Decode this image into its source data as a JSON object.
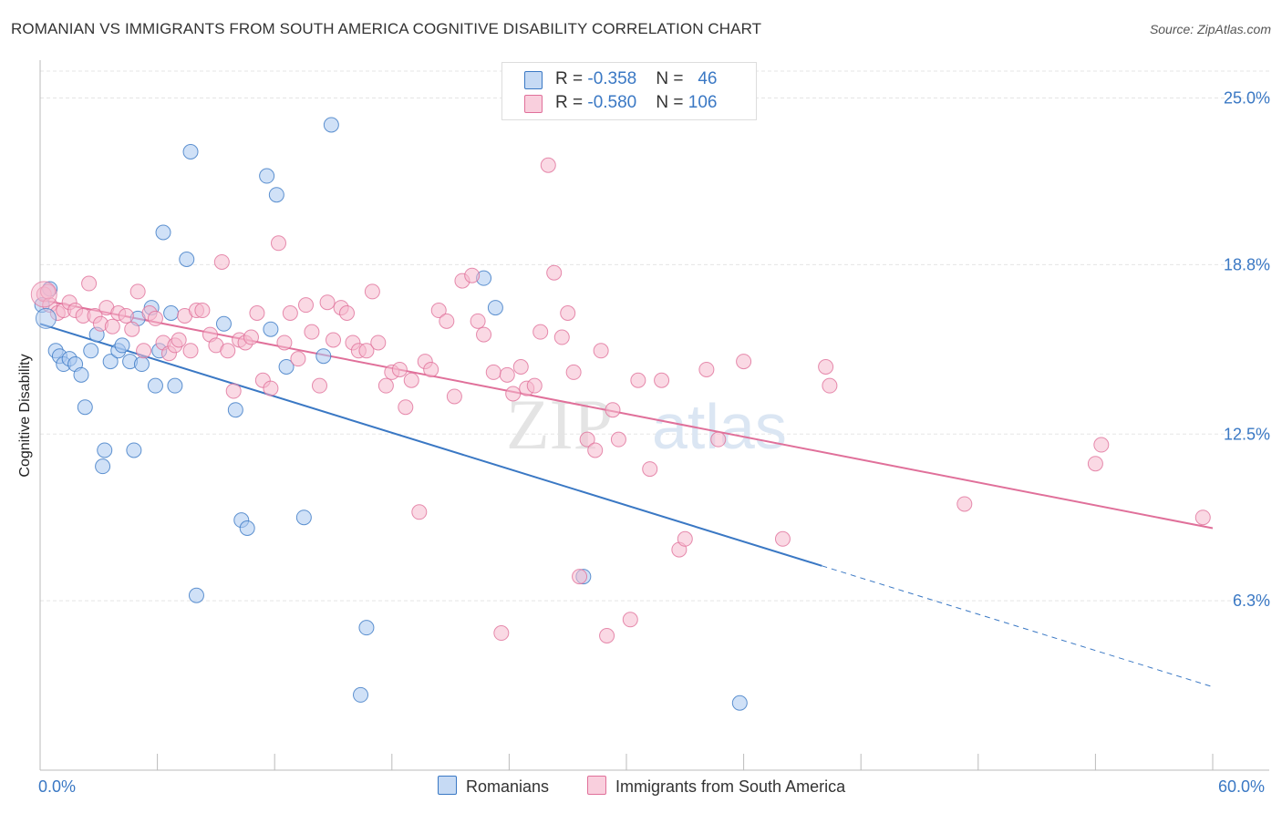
{
  "title": "ROMANIAN VS IMMIGRANTS FROM SOUTH AMERICA COGNITIVE DISABILITY CORRELATION CHART",
  "source": "Source: ZipAtlas.com",
  "watermark": "ZIPatlas",
  "colors": {
    "blue": "#3a78c4",
    "blue_fill": "#a9c8f0",
    "pink": "#e0709a",
    "pink_fill": "#f5b9cd",
    "grid": "#e5e5e5",
    "tick_text": "#3a78c4"
  },
  "legend": {
    "rows": [
      {
        "r_label": "R = ",
        "r_value": "-0.358",
        "n_label": "N = ",
        "n_value": "46"
      },
      {
        "r_label": "R = ",
        "r_value": "-0.580",
        "n_label": "N = ",
        "n_value": "106"
      }
    ]
  },
  "bottom_legend": {
    "series1": "Romanians",
    "series2": "Immigrants from South America"
  },
  "chart_data": {
    "type": "scatter",
    "title": "ROMANIAN VS IMMIGRANTS FROM SOUTH AMERICA COGNITIVE DISABILITY CORRELATION CHART",
    "xlabel": "",
    "ylabel": "Cognitive Disability",
    "xlim": [
      0,
      60
    ],
    "ylim": [
      0,
      26
    ],
    "x_tick_labels": [
      "0.0%",
      "60.0%"
    ],
    "y_ticks": [
      {
        "value": 6.3,
        "label": "6.3%"
      },
      {
        "value": 12.5,
        "label": "12.5%"
      },
      {
        "value": 18.8,
        "label": "18.8%"
      },
      {
        "value": 25.0,
        "label": "25.0%"
      }
    ],
    "grid": true,
    "series": [
      {
        "name": "Romanians",
        "color": "#3a78c4",
        "trend": {
          "x0": 0,
          "y0": 16.6,
          "x1": 40,
          "y1": 7.6,
          "dash_to_x": 60,
          "dash_to_y": 3.1
        },
        "points": [
          [
            0.1,
            17.3
          ],
          [
            0.5,
            17.9
          ],
          [
            0.8,
            15.6
          ],
          [
            1.0,
            15.4
          ],
          [
            1.2,
            15.1
          ],
          [
            1.5,
            15.3
          ],
          [
            1.8,
            15.1
          ],
          [
            2.1,
            14.7
          ],
          [
            2.3,
            13.5
          ],
          [
            2.6,
            15.6
          ],
          [
            2.9,
            16.2
          ],
          [
            3.3,
            11.9
          ],
          [
            3.2,
            11.3
          ],
          [
            3.6,
            15.2
          ],
          [
            4.0,
            15.6
          ],
          [
            4.2,
            15.8
          ],
          [
            4.6,
            15.2
          ],
          [
            4.8,
            11.9
          ],
          [
            5.0,
            16.8
          ],
          [
            5.2,
            15.1
          ],
          [
            5.7,
            17.2
          ],
          [
            5.9,
            14.3
          ],
          [
            6.1,
            15.6
          ],
          [
            6.3,
            20.0
          ],
          [
            6.7,
            17.0
          ],
          [
            6.9,
            14.3
          ],
          [
            7.5,
            19.0
          ],
          [
            7.7,
            23.0
          ],
          [
            8.0,
            6.5
          ],
          [
            9.4,
            16.6
          ],
          [
            10.0,
            13.4
          ],
          [
            10.3,
            9.3
          ],
          [
            10.6,
            9.0
          ],
          [
            11.6,
            22.1
          ],
          [
            11.8,
            16.4
          ],
          [
            12.1,
            21.4
          ],
          [
            12.6,
            15.0
          ],
          [
            13.5,
            9.4
          ],
          [
            14.5,
            15.4
          ],
          [
            14.9,
            24.0
          ],
          [
            16.7,
            5.3
          ],
          [
            16.4,
            2.8
          ],
          [
            22.7,
            18.3
          ],
          [
            23.3,
            17.2
          ],
          [
            27.8,
            7.2
          ],
          [
            35.8,
            2.5
          ]
        ]
      },
      {
        "name": "Immigrants from South America",
        "color": "#e0709a",
        "trend": {
          "x0": 0,
          "y0": 17.5,
          "x1": 60,
          "y1": 9.0
        },
        "points": [
          [
            0.2,
            17.7
          ],
          [
            0.5,
            17.3
          ],
          [
            0.9,
            17.0
          ],
          [
            1.2,
            17.1
          ],
          [
            1.5,
            17.4
          ],
          [
            1.8,
            17.1
          ],
          [
            2.2,
            16.9
          ],
          [
            2.5,
            18.1
          ],
          [
            2.8,
            16.9
          ],
          [
            3.1,
            16.6
          ],
          [
            3.4,
            17.2
          ],
          [
            3.7,
            16.5
          ],
          [
            4.0,
            17.0
          ],
          [
            4.4,
            16.9
          ],
          [
            4.7,
            16.4
          ],
          [
            5.0,
            17.8
          ],
          [
            5.3,
            15.6
          ],
          [
            5.6,
            17.0
          ],
          [
            5.9,
            16.8
          ],
          [
            6.3,
            15.9
          ],
          [
            6.6,
            15.5
          ],
          [
            6.9,
            15.8
          ],
          [
            7.1,
            16.0
          ],
          [
            7.4,
            16.9
          ],
          [
            7.7,
            15.6
          ],
          [
            8.0,
            17.1
          ],
          [
            8.3,
            17.1
          ],
          [
            8.7,
            16.2
          ],
          [
            9.0,
            15.8
          ],
          [
            9.3,
            18.9
          ],
          [
            9.6,
            15.6
          ],
          [
            9.9,
            14.1
          ],
          [
            10.2,
            16.0
          ],
          [
            10.5,
            15.9
          ],
          [
            10.8,
            16.1
          ],
          [
            11.1,
            17.0
          ],
          [
            11.4,
            14.5
          ],
          [
            11.8,
            14.2
          ],
          [
            12.2,
            19.6
          ],
          [
            12.5,
            15.9
          ],
          [
            12.8,
            17.0
          ],
          [
            13.2,
            15.3
          ],
          [
            13.6,
            17.3
          ],
          [
            13.9,
            16.3
          ],
          [
            14.3,
            14.3
          ],
          [
            14.7,
            17.4
          ],
          [
            15.0,
            16.0
          ],
          [
            15.4,
            17.2
          ],
          [
            15.7,
            17.0
          ],
          [
            16.0,
            15.9
          ],
          [
            16.3,
            15.6
          ],
          [
            16.7,
            15.6
          ],
          [
            17.0,
            17.8
          ],
          [
            17.3,
            15.9
          ],
          [
            17.7,
            14.3
          ],
          [
            18.0,
            14.8
          ],
          [
            18.4,
            14.9
          ],
          [
            18.7,
            13.5
          ],
          [
            19.0,
            14.5
          ],
          [
            19.4,
            9.6
          ],
          [
            19.7,
            15.2
          ],
          [
            20.0,
            14.9
          ],
          [
            20.4,
            17.1
          ],
          [
            20.8,
            16.7
          ],
          [
            21.2,
            13.9
          ],
          [
            21.6,
            18.2
          ],
          [
            22.1,
            18.4
          ],
          [
            22.4,
            16.7
          ],
          [
            22.7,
            16.2
          ],
          [
            23.2,
            14.8
          ],
          [
            23.6,
            5.1
          ],
          [
            23.9,
            14.7
          ],
          [
            24.2,
            14.0
          ],
          [
            24.6,
            15.0
          ],
          [
            24.9,
            14.2
          ],
          [
            25.3,
            14.3
          ],
          [
            25.6,
            16.3
          ],
          [
            26.0,
            22.5
          ],
          [
            26.3,
            18.5
          ],
          [
            26.7,
            16.1
          ],
          [
            27.0,
            17.0
          ],
          [
            27.3,
            14.8
          ],
          [
            27.6,
            7.2
          ],
          [
            28.0,
            12.3
          ],
          [
            28.4,
            11.9
          ],
          [
            28.7,
            15.6
          ],
          [
            29.0,
            5.0
          ],
          [
            29.3,
            13.4
          ],
          [
            29.6,
            12.3
          ],
          [
            30.2,
            5.6
          ],
          [
            30.6,
            14.5
          ],
          [
            31.2,
            11.2
          ],
          [
            31.8,
            14.5
          ],
          [
            32.7,
            8.2
          ],
          [
            33.0,
            8.6
          ],
          [
            34.1,
            14.9
          ],
          [
            34.7,
            12.3
          ],
          [
            36.0,
            15.2
          ],
          [
            38.0,
            8.6
          ],
          [
            40.2,
            15.0
          ],
          [
            40.4,
            14.3
          ],
          [
            47.3,
            9.9
          ],
          [
            54.0,
            11.4
          ],
          [
            54.3,
            12.1
          ],
          [
            59.5,
            9.4
          ],
          [
            0.4,
            17.8
          ]
        ]
      }
    ]
  }
}
